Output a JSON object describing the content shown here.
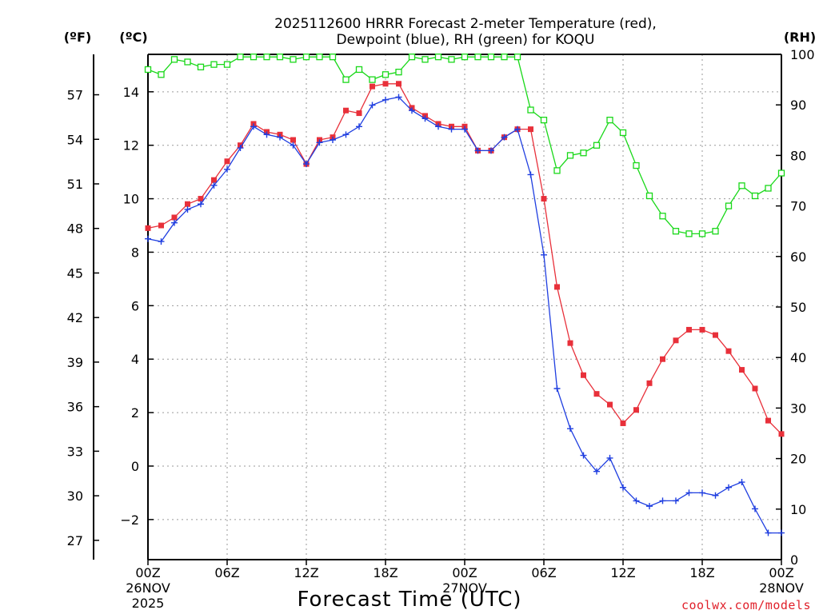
{
  "chart_data": {
    "type": "line",
    "title_line1": "2025112600 HRRR Forecast 2-meter Temperature (red),",
    "title_line2": "Dewpoint (blue), RH (green) for KOQU",
    "xlabel": "Forecast Time (UTC)",
    "credit": "coolwx.com/models",
    "left_unit_f": "(ºF)",
    "left_unit_c": "(ºC)",
    "right_unit": "(RH)",
    "x_range_hours": [
      0,
      48
    ],
    "ylim_celsius": [
      -3.5,
      15.4
    ],
    "ylim_rh": [
      0,
      100
    ],
    "grid": true,
    "x_ticks": [
      {
        "hour": 0,
        "label": "00Z",
        "label2": "26NOV",
        "label3": "2025"
      },
      {
        "hour": 6,
        "label": "06Z"
      },
      {
        "hour": 12,
        "label": "12Z"
      },
      {
        "hour": 18,
        "label": "18Z"
      },
      {
        "hour": 24,
        "label": "00Z",
        "label2": "27NOV"
      },
      {
        "hour": 30,
        "label": "06Z"
      },
      {
        "hour": 36,
        "label": "12Z"
      },
      {
        "hour": 42,
        "label": "18Z"
      },
      {
        "hour": 48,
        "label": "00Z",
        "label2": "28NOV"
      }
    ],
    "celsius_ticks": [
      -2,
      0,
      2,
      4,
      6,
      8,
      10,
      12,
      14
    ],
    "celsius_tick_labels": [
      "−2",
      "0",
      "2",
      "4",
      "6",
      "8",
      "10",
      "12",
      "14"
    ],
    "fahrenheit_ticks": [
      27,
      30,
      33,
      36,
      39,
      42,
      45,
      48,
      51,
      54,
      57
    ],
    "fahrenheit_tick_labels": [
      "27",
      "30",
      "33",
      "36",
      "39",
      "42",
      "45",
      "48",
      "51",
      "54",
      "57"
    ],
    "rh_ticks": [
      0,
      10,
      20,
      30,
      40,
      50,
      60,
      70,
      80,
      90,
      100
    ],
    "rh_tick_labels": [
      "0",
      "10",
      "20",
      "30",
      "40",
      "50",
      "60",
      "70",
      "80",
      "90",
      "100"
    ],
    "hours": [
      0,
      1,
      2,
      3,
      4,
      5,
      6,
      7,
      8,
      9,
      10,
      11,
      12,
      13,
      14,
      15,
      16,
      17,
      18,
      19,
      20,
      21,
      22,
      23,
      24,
      25,
      26,
      27,
      28,
      29,
      30,
      31,
      32,
      33,
      34,
      35,
      36,
      37,
      38,
      39,
      40,
      41,
      42,
      43,
      44,
      45,
      46,
      47,
      48
    ],
    "series": [
      {
        "name": "Temperature",
        "color": "#e8303a",
        "marker": "filled-square",
        "axis": "celsius",
        "values": [
          8.9,
          9.0,
          9.3,
          9.8,
          10.0,
          10.7,
          11.4,
          12.0,
          12.8,
          12.5,
          12.4,
          12.2,
          11.3,
          12.2,
          12.3,
          13.3,
          13.2,
          14.2,
          14.3,
          14.3,
          13.4,
          13.1,
          12.8,
          12.7,
          12.7,
          11.8,
          11.8,
          12.3,
          12.6,
          12.6,
          10.0,
          6.7,
          4.6,
          3.4,
          2.7,
          2.3,
          1.6,
          2.1,
          3.1,
          4.0,
          4.7,
          5.1,
          5.1,
          4.9,
          4.3,
          3.6,
          2.9,
          1.7,
          1.2
        ]
      },
      {
        "name": "Dewpoint",
        "color": "#1f3ee0",
        "marker": "plus",
        "axis": "celsius",
        "values": [
          8.5,
          8.4,
          9.1,
          9.6,
          9.8,
          10.5,
          11.1,
          11.9,
          12.7,
          12.4,
          12.3,
          12.0,
          11.3,
          12.1,
          12.2,
          12.4,
          12.7,
          13.5,
          13.7,
          13.8,
          13.3,
          13.0,
          12.7,
          12.6,
          12.6,
          11.8,
          11.8,
          12.3,
          12.6,
          10.9,
          7.9,
          2.9,
          1.4,
          0.4,
          -0.2,
          0.3,
          -0.8,
          -1.3,
          -1.5,
          -1.3,
          -1.3,
          -1.0,
          -1.0,
          -1.1,
          -0.8,
          -0.6,
          -1.6,
          -2.5,
          -2.5
        ]
      },
      {
        "name": "RH",
        "color": "#19d819",
        "marker": "open-square",
        "axis": "rh",
        "values": [
          97,
          96,
          99,
          98.5,
          97.5,
          98,
          98,
          99.5,
          99.5,
          99.5,
          99.5,
          99,
          99.5,
          99.5,
          99.5,
          95,
          97,
          95,
          96,
          96.5,
          99.5,
          99,
          99.5,
          99,
          99.5,
          99.5,
          99.5,
          99.5,
          99.5,
          89,
          87,
          77,
          80,
          80.5,
          82,
          87,
          84.5,
          78,
          72,
          68,
          65,
          64.5,
          64.5,
          65,
          70,
          74,
          72,
          73.5,
          76.5
        ]
      }
    ]
  }
}
